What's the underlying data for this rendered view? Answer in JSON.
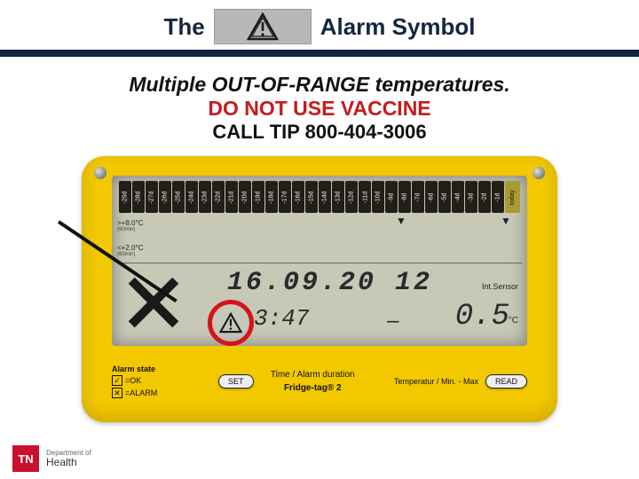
{
  "header": {
    "left_text": "The",
    "right_text": "Alarm Symbol",
    "underline_color": "#13253d",
    "icon": {
      "name": "warning-triangle",
      "stroke": "#1a1a1a",
      "box_bg": "#b8b8b8"
    }
  },
  "subhead": {
    "line1": "Multiple OUT-OF-RANGE temperatures.",
    "line2": "DO NOT USE VACCINE",
    "line2_color": "#c41c1c",
    "line3": "CALL TIP 800-404-3006"
  },
  "device": {
    "body_color": "#f2c800",
    "lcd_bg": "#c7c8b6",
    "days": [
      "-29d",
      "-28d",
      "-27d",
      "-26d",
      "-25d",
      "-24d",
      "-23d",
      "-22d",
      "-21d",
      "-20d",
      "-19d",
      "-18d",
      "-17d",
      "-16d",
      "-15d",
      "-14d",
      "-13d",
      "-12d",
      "-11d",
      "-10d",
      "-9d",
      "-8d",
      "-7d",
      "-6d",
      "-5d",
      "-4d",
      "-3d",
      "-2d",
      "-1d",
      "today"
    ],
    "thresholds": {
      "upper": {
        "label": ">+8.0°C",
        "duration": "(60min)"
      },
      "lower": {
        "label": "<+2.0°C",
        "duration": "(60min)"
      }
    },
    "date": "16.09.20 12",
    "int_sensor_label": "Int.Sensor",
    "time": "3:47",
    "temp_value": "0.5",
    "temp_unit": "°C",
    "highlight_circle_color": "#d4141a",
    "labels": {
      "alarm_state": "Alarm state",
      "ok_row": "=OK",
      "alarm_row": "=ALARM",
      "set_button": "SET",
      "center": "Time / Alarm duration",
      "brand": "Fridge-tag® 2",
      "right": "Temperatur / Min. - Max",
      "read_button": "READ"
    }
  },
  "footer": {
    "badge": "TN",
    "badge_bg": "#c8102e",
    "dept_line": "Department of",
    "health_line": "Health"
  }
}
